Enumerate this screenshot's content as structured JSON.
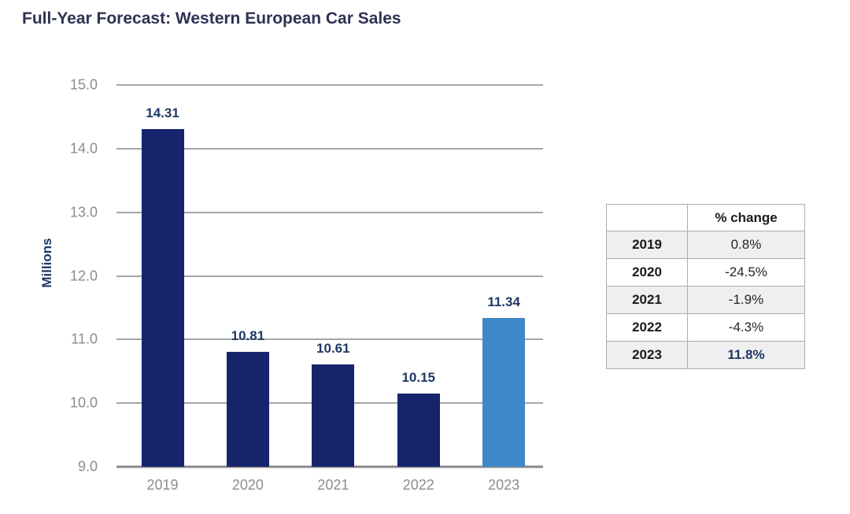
{
  "page": {
    "title": "Full-Year Forecast: Western European Car Sales"
  },
  "chart_data": {
    "type": "bar",
    "title": "Full-Year Forecast: Western European Car Sales",
    "categories": [
      "2019",
      "2020",
      "2021",
      "2022",
      "2023"
    ],
    "values": [
      14.31,
      10.81,
      10.61,
      10.15,
      11.34
    ],
    "value_labels": [
      "14.31",
      "10.81",
      "10.61",
      "10.15",
      "11.34"
    ],
    "xlabel": "",
    "ylabel": "Millions",
    "ylim": [
      9.0,
      15.0
    ],
    "ytick_step": 1.0,
    "yticks": [
      "15.0",
      "14.0",
      "13.0",
      "12.0",
      "11.0",
      "10.0",
      "9.0"
    ],
    "grid": true,
    "legend_position": "none",
    "bar_colors": [
      "#17246c",
      "#17246c",
      "#17246c",
      "#17246c",
      "#3e87c8"
    ],
    "highlight_category": "2023"
  },
  "table": {
    "header": [
      "",
      "% change"
    ],
    "rows": [
      {
        "year": "2019",
        "change": "0.8%"
      },
      {
        "year": "2020",
        "change": "-24.5%"
      },
      {
        "year": "2021",
        "change": "-1.9%"
      },
      {
        "year": "2022",
        "change": "-4.3%"
      },
      {
        "year": "2023",
        "change": "11.8%"
      }
    ],
    "highlight_row": "2023"
  },
  "colors": {
    "title_text": "#2f3253",
    "bar_navy": "#17246c",
    "bar_highlight_blue": "#3e87c8",
    "data_label_navy": "#1f3864",
    "axis_text_gray": "#8c8c8c",
    "gridline_gray": "#a6a6a6",
    "table_border_gray": "#adadad",
    "table_stripe_gray": "#efefef",
    "table_highlight_text": "#1f3864"
  }
}
